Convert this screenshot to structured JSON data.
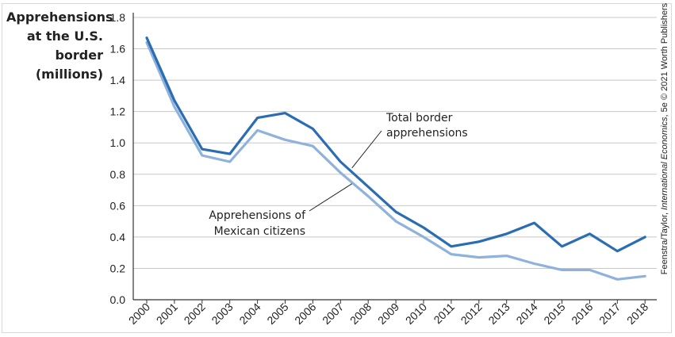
{
  "chart_data": {
    "type": "line",
    "ylabel_lines": [
      "Apprehensions",
      "at the U.S.",
      "border",
      "(millions)"
    ],
    "xlabel": "",
    "ylim": [
      0,
      1.8
    ],
    "yticks": [
      "0.0",
      "0.2",
      "0.4",
      "0.6",
      "0.8",
      "1.0",
      "1.2",
      "1.4",
      "1.6",
      "1.8"
    ],
    "grid": "horizontal",
    "x": [
      "2000",
      "2001",
      "2002",
      "2003",
      "2004",
      "2005",
      "2006",
      "2007",
      "2008",
      "2009",
      "2010",
      "2011",
      "2012",
      "2013",
      "2014",
      "2015",
      "2016",
      "2017",
      "2018"
    ],
    "series": [
      {
        "name": "Total border apprehensions",
        "label_lines": [
          "Total border",
          "apprehensions"
        ],
        "color": "#2b6db3",
        "values": [
          1.67,
          1.27,
          0.96,
          0.93,
          1.16,
          1.19,
          1.09,
          0.88,
          0.72,
          0.56,
          0.46,
          0.34,
          0.37,
          0.42,
          0.49,
          0.34,
          0.42,
          0.31,
          0.4
        ]
      },
      {
        "name": "Apprehensions of Mexican citizens",
        "label_lines": [
          "Apprehensions of",
          "Mexican citizens"
        ],
        "color": "#8fb2dd",
        "values": [
          1.64,
          1.23,
          0.92,
          0.88,
          1.08,
          1.02,
          0.98,
          0.81,
          0.66,
          0.5,
          0.4,
          0.29,
          0.27,
          0.28,
          0.23,
          0.19,
          0.19,
          0.13,
          0.15
        ]
      }
    ]
  },
  "credit": {
    "authors": "Feenstra/Taylor, ",
    "book": "International Economics",
    "rest": ", 5e © 2021 Worth Publishers"
  }
}
